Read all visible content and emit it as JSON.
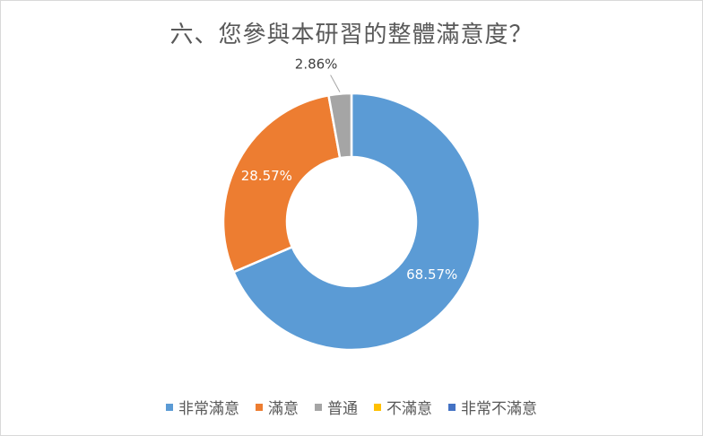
{
  "chart_data": {
    "type": "pie",
    "variant": "donut",
    "title": "六、您參與本研習的整體滿意度？",
    "categories": [
      "非常滿意",
      "滿意",
      "普通",
      "不滿意",
      "非常不滿意"
    ],
    "values": [
      68.57,
      28.57,
      2.86,
      0,
      0
    ],
    "data_labels": [
      "68.57%",
      "28.57%",
      "2.86%",
      "",
      ""
    ],
    "colors": [
      "#5b9bd5",
      "#ed7d31",
      "#a5a5a5",
      "#ffc000",
      "#4472c4"
    ],
    "legend_position": "bottom"
  }
}
